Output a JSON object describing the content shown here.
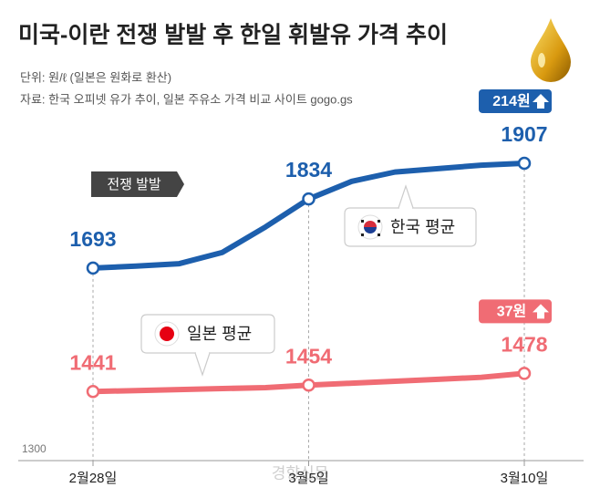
{
  "chart_data": {
    "type": "line",
    "title": "미국-이란 전쟁 발발 후 한일 휘발유 가격 추이",
    "notes": [
      "단위: 원/ℓ (일본은 원화로 환산)",
      "자료: 한국 오피넷 유가 추이, 일본 주유소 가격 비교 사이트 gogo.gs"
    ],
    "categories": [
      "2월28일",
      null,
      null,
      null,
      null,
      "3월5일",
      null,
      null,
      null,
      null,
      "3월10일"
    ],
    "series": [
      {
        "name": "한국 평균",
        "color": "#1d5fad",
        "values": [
          1693,
          1697,
          1702,
          1725,
          1777,
          1834,
          1870,
          1889,
          1896,
          1903,
          1907
        ],
        "change": "214원"
      },
      {
        "name": "일본 평균",
        "color": "#f06c74",
        "values": [
          1441,
          1443,
          1445,
          1447,
          1449,
          1454,
          1458,
          1462,
          1466,
          1470,
          1478
        ],
        "change": "37원"
      }
    ],
    "ylim": [
      1300,
      2054
    ],
    "yticks": [
      1300
    ],
    "event": "전쟁 발발",
    "watermark": "경향신문"
  }
}
